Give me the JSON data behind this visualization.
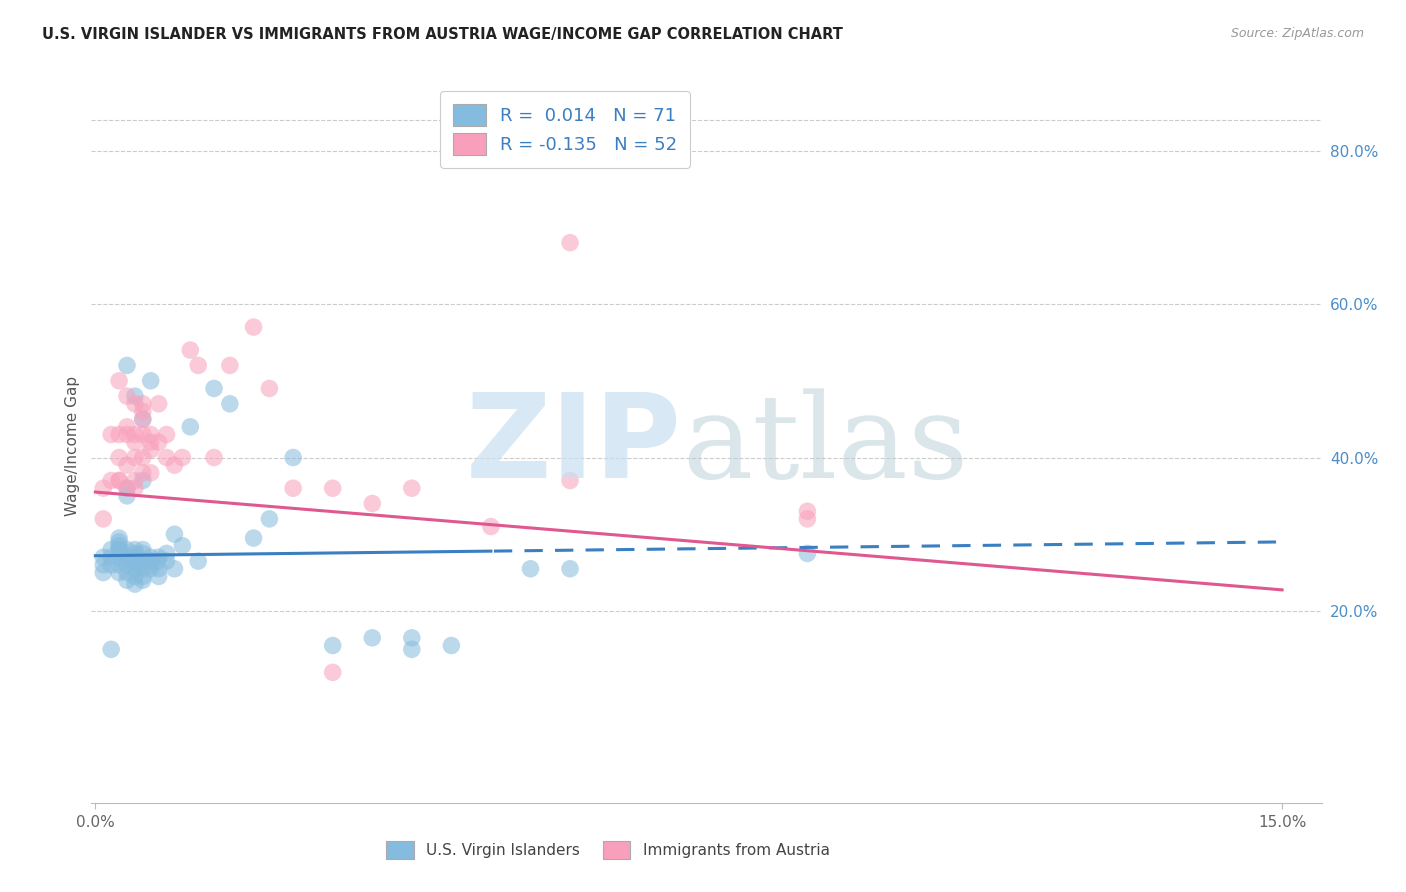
{
  "title": "U.S. VIRGIN ISLANDER VS IMMIGRANTS FROM AUSTRIA WAGE/INCOME GAP CORRELATION CHART",
  "source": "Source: ZipAtlas.com",
  "ylabel": "Wage/Income Gap",
  "xlim": [
    -0.0005,
    0.155
  ],
  "ylim": [
    -0.05,
    0.88
  ],
  "xtick_positions": [
    0.0,
    0.15
  ],
  "xtick_labels": [
    "0.0%",
    "15.0%"
  ],
  "ytick_vals_right": [
    0.2,
    0.4,
    0.6,
    0.8
  ],
  "ytick_labels_right": [
    "20.0%",
    "40.0%",
    "60.0%",
    "80.0%"
  ],
  "blue_color": "#85BBDE",
  "pink_color": "#F8A0BB",
  "blue_line_color": "#3A7FC1",
  "pink_line_color": "#E05890",
  "right_axis_color": "#4A8EC8",
  "grid_color": "#CCCCCC",
  "blue_r": 0.014,
  "blue_n": 71,
  "pink_r": -0.135,
  "pink_n": 52,
  "blue_label": "U.S. Virgin Islanders",
  "pink_label": "Immigrants from Austria",
  "blue_trend_intercept": 0.272,
  "blue_trend_slope": 0.12,
  "pink_trend_intercept": 0.355,
  "pink_trend_slope": -0.85,
  "blue_x": [
    0.001,
    0.001,
    0.001,
    0.002,
    0.002,
    0.002,
    0.003,
    0.003,
    0.003,
    0.003,
    0.004,
    0.004,
    0.004,
    0.004,
    0.004,
    0.005,
    0.005,
    0.005,
    0.005,
    0.005,
    0.005,
    0.006,
    0.006,
    0.006,
    0.006,
    0.006,
    0.007,
    0.007,
    0.007,
    0.008,
    0.008,
    0.008,
    0.008,
    0.009,
    0.009,
    0.01,
    0.01,
    0.011,
    0.012,
    0.013,
    0.015,
    0.017,
    0.02,
    0.022,
    0.025,
    0.03,
    0.035,
    0.04,
    0.045,
    0.055,
    0.06,
    0.007,
    0.004,
    0.005,
    0.006,
    0.003,
    0.004,
    0.005,
    0.003,
    0.004,
    0.005,
    0.006,
    0.003,
    0.004,
    0.005,
    0.006,
    0.007,
    0.09,
    0.04,
    0.003,
    0.002
  ],
  "blue_y": [
    0.27,
    0.26,
    0.25,
    0.28,
    0.27,
    0.26,
    0.28,
    0.27,
    0.26,
    0.25,
    0.28,
    0.27,
    0.26,
    0.25,
    0.24,
    0.28,
    0.27,
    0.265,
    0.255,
    0.245,
    0.235,
    0.275,
    0.265,
    0.255,
    0.245,
    0.28,
    0.27,
    0.265,
    0.255,
    0.27,
    0.265,
    0.255,
    0.245,
    0.275,
    0.265,
    0.3,
    0.255,
    0.285,
    0.44,
    0.265,
    0.49,
    0.47,
    0.295,
    0.32,
    0.4,
    0.155,
    0.165,
    0.165,
    0.155,
    0.255,
    0.255,
    0.5,
    0.52,
    0.48,
    0.45,
    0.295,
    0.36,
    0.275,
    0.285,
    0.35,
    0.265,
    0.37,
    0.28,
    0.27,
    0.26,
    0.24,
    0.26,
    0.275,
    0.15,
    0.29,
    0.15
  ],
  "pink_x": [
    0.001,
    0.001,
    0.002,
    0.002,
    0.003,
    0.003,
    0.003,
    0.004,
    0.004,
    0.004,
    0.005,
    0.005,
    0.005,
    0.006,
    0.006,
    0.006,
    0.007,
    0.007,
    0.007,
    0.008,
    0.008,
    0.009,
    0.009,
    0.01,
    0.011,
    0.012,
    0.013,
    0.015,
    0.017,
    0.02,
    0.022,
    0.025,
    0.03,
    0.035,
    0.04,
    0.05,
    0.06,
    0.09,
    0.003,
    0.004,
    0.005,
    0.006,
    0.004,
    0.005,
    0.006,
    0.007,
    0.003,
    0.005,
    0.006,
    0.09,
    0.06,
    0.03
  ],
  "pink_y": [
    0.36,
    0.32,
    0.43,
    0.37,
    0.4,
    0.37,
    0.43,
    0.39,
    0.43,
    0.36,
    0.43,
    0.4,
    0.47,
    0.43,
    0.47,
    0.4,
    0.42,
    0.41,
    0.38,
    0.47,
    0.42,
    0.43,
    0.4,
    0.39,
    0.4,
    0.54,
    0.52,
    0.4,
    0.52,
    0.57,
    0.49,
    0.36,
    0.36,
    0.34,
    0.36,
    0.31,
    0.68,
    0.32,
    0.37,
    0.44,
    0.36,
    0.45,
    0.48,
    0.37,
    0.46,
    0.43,
    0.5,
    0.42,
    0.38,
    0.33,
    0.37,
    0.12
  ]
}
